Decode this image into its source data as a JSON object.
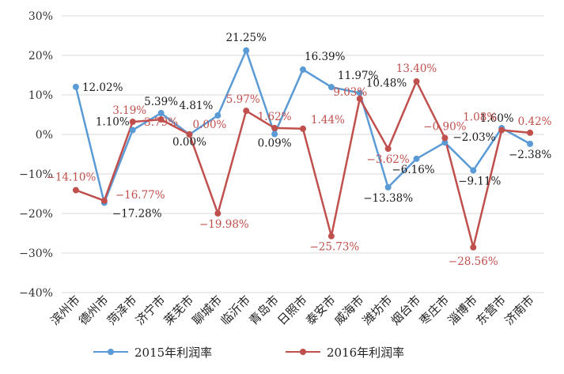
{
  "chart_data": {
    "type": "line",
    "title": "",
    "xlabel": "",
    "ylabel": "",
    "ylim": [
      -40,
      30
    ],
    "yticks": [
      "30%",
      "20%",
      "10%",
      "0%",
      "−10%",
      "−20%",
      "−30%",
      "−40%"
    ],
    "grid": true,
    "legend_position": "bottom",
    "categories": [
      "滨州市",
      "德州市",
      "菏泽市",
      "济宁市",
      "莱芜市",
      "聊城市",
      "临沂市",
      "青岛市",
      "日照市",
      "泰安市",
      "威海市",
      "潍坊市",
      "烟台市",
      "枣庄市",
      "淄博市",
      "东营市",
      "济南市"
    ],
    "series": [
      {
        "name": "2015年利润率",
        "color": "#5b9bd5",
        "label_color": "#1a1a1a",
        "values": [
          12.02,
          -17.28,
          1.1,
          5.39,
          0.0,
          4.81,
          21.25,
          0.09,
          16.39,
          11.97,
          10.48,
          -13.38,
          -6.16,
          -2.03,
          -9.11,
          1.6,
          -2.38
        ],
        "labels": [
          "12.02%",
          "−17.28%",
          "1.10%",
          "5.39%",
          "0.00%",
          "4.81%",
          "21.25%",
          "0.09%",
          "16.39%",
          "11.97%",
          "10.48%",
          "−13.38%",
          "−6.16%",
          "−2.03%",
          "−9.11%",
          "1.60%",
          "−2.38%"
        ]
      },
      {
        "name": "2016年利润率",
        "color": "#c0504d",
        "label_color": "#c0504d",
        "values": [
          -14.1,
          -16.77,
          3.19,
          3.79,
          0.0,
          -19.98,
          5.97,
          1.62,
          1.44,
          -25.73,
          9.03,
          -3.62,
          13.4,
          -0.9,
          -28.56,
          1.08,
          0.42
        ],
        "labels": [
          "−14.10%",
          "−16.77%",
          "3.19%",
          "3.79%",
          "0.00%",
          "−19.98%",
          "5.97%",
          "1.62%",
          "1.44%",
          "−25.73%",
          "9.03%",
          "−3.62%",
          "13.40%",
          "−0.90%",
          "−28.56%",
          "1.08%",
          "0.42%"
        ]
      }
    ]
  }
}
